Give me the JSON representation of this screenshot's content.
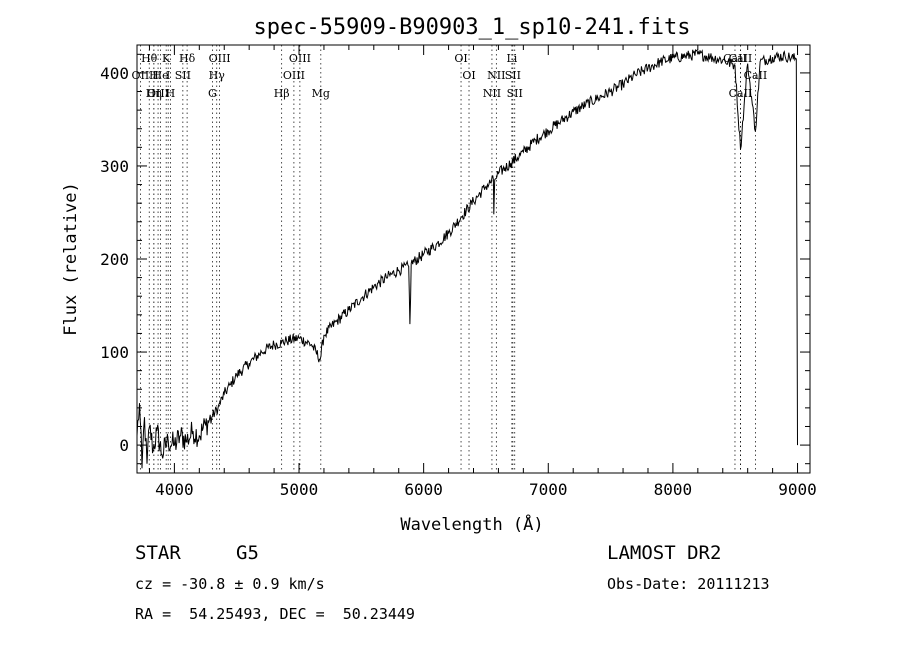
{
  "chart_data": {
    "type": "line",
    "title": "spec-55909-B90903_1_sp10-241.fits",
    "xlabel": "Wavelength (Å)",
    "ylabel": "Flux (relative)",
    "xlim": [
      3700,
      9100
    ],
    "ylim": [
      -30,
      430
    ],
    "x_ticks": [
      4000,
      5000,
      6000,
      7000,
      8000,
      9000
    ],
    "y_ticks": [
      0,
      100,
      200,
      300,
      400
    ],
    "grid": false,
    "series": [
      {
        "x": [
          3700,
          3720,
          3740,
          3760,
          3780,
          3800,
          3830,
          3860,
          3900,
          3950,
          4000,
          4050,
          4100,
          4150,
          4200,
          4250,
          4300,
          4350,
          4400,
          4450,
          4500,
          4600,
          4700,
          4800,
          4860,
          4900,
          5000,
          5100,
          5170,
          5200,
          5300,
          5400,
          5500,
          5600,
          5700,
          5800,
          5880,
          5890,
          5900,
          6000,
          6100,
          6200,
          6300,
          6400,
          6500,
          6560,
          6563,
          6570,
          6600,
          6700,
          6800,
          6900,
          7000,
          7100,
          7200,
          7300,
          7400,
          7500,
          7600,
          7700,
          7800,
          7900,
          8000,
          8100,
          8200,
          8300,
          8400,
          8498,
          8542,
          8600,
          8662,
          8700,
          8800,
          8900,
          8990,
          9000
        ],
        "y": [
          10,
          45,
          -25,
          30,
          -20,
          20,
          -5,
          15,
          -10,
          5,
          0,
          10,
          5,
          15,
          10,
          22,
          30,
          40,
          55,
          65,
          75,
          88,
          100,
          108,
          110,
          112,
          115,
          108,
          92,
          118,
          133,
          145,
          158,
          170,
          180,
          188,
          192,
          130,
          195,
          205,
          215,
          228,
          245,
          262,
          278,
          285,
          248,
          285,
          292,
          303,
          315,
          328,
          338,
          348,
          358,
          366,
          373,
          380,
          388,
          398,
          405,
          412,
          416,
          418,
          420,
          417,
          414,
          408,
          318,
          410,
          337,
          412,
          417,
          418,
          415,
          0
        ]
      }
    ],
    "line_markers": [
      {
        "label": "Hθ",
        "x": 3798,
        "row": 0
      },
      {
        "label": "K",
        "x": 3934,
        "row": 0
      },
      {
        "label": "Hδ",
        "x": 4102,
        "row": 0
      },
      {
        "label": "OIII",
        "x": 4363,
        "row": 0
      },
      {
        "label": "OIII",
        "x": 5007,
        "row": 0
      },
      {
        "label": "OI",
        "x": 6300,
        "row": 0
      },
      {
        "label": "Li",
        "x": 6708,
        "row": 0
      },
      {
        "label": "CaII",
        "x": 8498,
        "row": 0
      },
      {
        "label": "CaII",
        "x": 8542,
        "row": 0
      },
      {
        "label": "OII",
        "x": 3727,
        "row": 1
      },
      {
        "label": "H",
        "x": 3835,
        "row": 1
      },
      {
        "label": "He",
        "x": 3889,
        "row": 1
      },
      {
        "label": "I",
        "x": 3950,
        "row": 1
      },
      {
        "label": "SII",
        "x": 4068,
        "row": 1
      },
      {
        "label": "Hγ",
        "x": 4340,
        "row": 1
      },
      {
        "label": "OIII",
        "x": 4959,
        "row": 1
      },
      {
        "label": "OI",
        "x": 6364,
        "row": 1
      },
      {
        "label": "NII",
        "x": 6583,
        "row": 1
      },
      {
        "label": "SII",
        "x": 6716,
        "row": 1
      },
      {
        "label": "CaII",
        "x": 8662,
        "row": 1
      },
      {
        "label": "OIII",
        "x": 3869,
        "row": 2
      },
      {
        "label": "Hη",
        "x": 3835,
        "row": 2
      },
      {
        "label": "H",
        "x": 3968,
        "row": 2
      },
      {
        "label": "G",
        "x": 4305,
        "row": 2
      },
      {
        "label": "Hβ",
        "x": 4861,
        "row": 2
      },
      {
        "label": "Mg",
        "x": 5175,
        "row": 2
      },
      {
        "label": "NII",
        "x": 6548,
        "row": 2
      },
      {
        "label": "SII",
        "x": 6731,
        "row": 2
      },
      {
        "label": "CaII",
        "x": 8542,
        "row": 2
      }
    ]
  },
  "info": {
    "object_class": "STAR",
    "subclass": "G5",
    "survey": "LAMOST DR2",
    "redshift_line": "cz = -30.8 ± 0.9 km/s",
    "obs_date": "Obs-Date: 20111213",
    "coords": "RA =  54.25493, DEC =  50.23449"
  }
}
